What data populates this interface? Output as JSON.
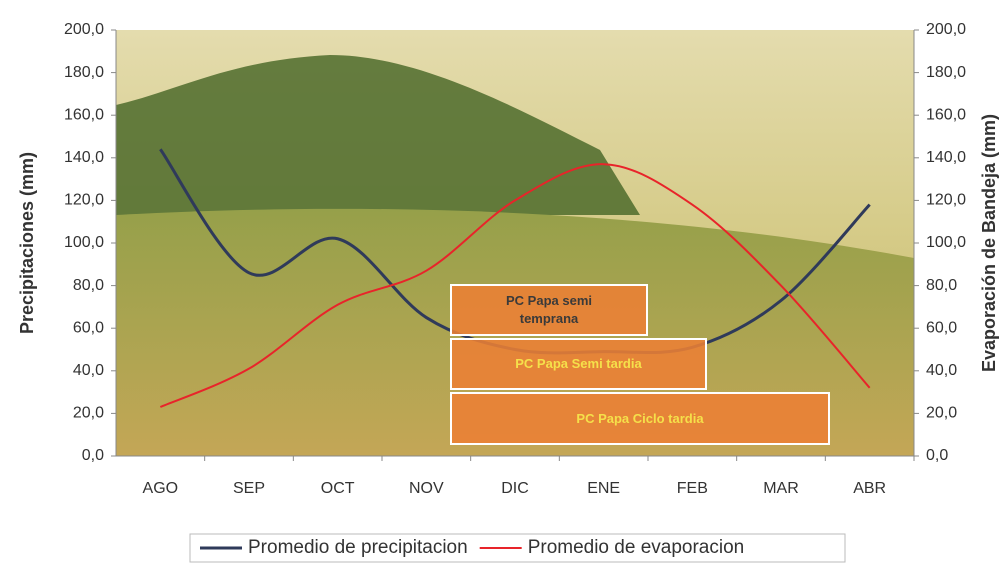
{
  "chart_data": {
    "type": "line",
    "y_label": "Precipitaciones (mm)",
    "y2_label": "Evaporación de Bandeja (mm)",
    "categories": [
      "AGO",
      "SEP",
      "OCT",
      "NOV",
      "DIC",
      "ENE",
      "FEB",
      "MAR",
      "ABR"
    ],
    "series": [
      {
        "name": "Promedio de precipitacion",
        "color": "#2f3a5a",
        "values": [
          144,
          86,
          102,
          65,
          50,
          49,
          51,
          73,
          118
        ]
      },
      {
        "name": "Promedio de evaporacion",
        "color": "#e8242a",
        "axis": "y2",
        "values": [
          23,
          41,
          71,
          87,
          120,
          137,
          118,
          80,
          32
        ]
      }
    ],
    "ylim": [
      0,
      200
    ],
    "yticks": [
      {
        "value": 0,
        "label": "0,0"
      },
      {
        "value": 20,
        "label": "20,0"
      },
      {
        "value": 40,
        "label": "40,0"
      },
      {
        "value": 60,
        "label": "60,0"
      },
      {
        "value": 80,
        "label": "80,0"
      },
      {
        "value": 100,
        "label": "100,0"
      },
      {
        "value": 120,
        "label": "120,0"
      },
      {
        "value": 140,
        "label": "140,0"
      },
      {
        "value": 160,
        "label": "160,0"
      },
      {
        "value": 180,
        "label": "180,0"
      },
      {
        "value": 200,
        "label": "200,0"
      }
    ],
    "y2lim": [
      0,
      200
    ],
    "y2ticks": [
      {
        "value": 0,
        "label": "0,0"
      },
      {
        "value": 20,
        "label": "20,0"
      },
      {
        "value": 40,
        "label": "40,0"
      },
      {
        "value": 60,
        "label": "60,0"
      },
      {
        "value": 80,
        "label": "80,0"
      },
      {
        "value": 100,
        "label": "100,0"
      },
      {
        "value": 120,
        "label": "120,0"
      },
      {
        "value": 140,
        "label": "140,0"
      },
      {
        "value": 160,
        "label": "160,0"
      },
      {
        "value": 180,
        "label": "180,0"
      },
      {
        "value": 200,
        "label": "200,0"
      }
    ],
    "annotations": [
      "PC Papa semi temprana",
      "PC Papa Semi tardia",
      "PC Papa Ciclo tardia"
    ],
    "legend": "bottom"
  }
}
